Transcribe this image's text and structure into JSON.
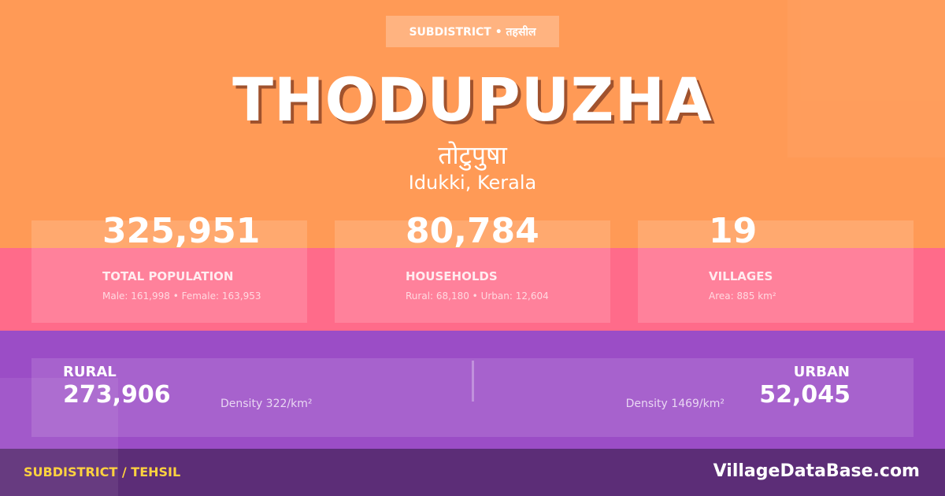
{
  "badge": "SUBDISTRICT • तहसील",
  "title": "THODUPUZHA",
  "title_hindi": "तोटुपुषा",
  "location": "Idukki, Kerala",
  "stats": [
    {
      "value": "325,951",
      "label": "TOTAL POPULATION",
      "sub": "Male: 161,998 • Female: 163,953"
    },
    {
      "value": "80,784",
      "label": "HOUSEHOLDS",
      "sub": "Rural: 68,180 • Urban: 12,604"
    },
    {
      "value": "19",
      "label": "VILLAGES",
      "sub": "Area: 885 km²"
    }
  ],
  "rural": {
    "label": "RURAL",
    "value": "273,906",
    "density": "Density 322/km²"
  },
  "urban": {
    "label": "URBAN",
    "value": "52,045",
    "density": "Density 1469/km²"
  },
  "footer": {
    "type": "SUBDISTRICT / TEHSIL",
    "brand": "VillageDataBase.com"
  },
  "colors": {
    "orange": "#ff9a56",
    "pink": "#ff6b8a",
    "purple": "#9b4dc6",
    "dark_purple": "#5c2d77",
    "accent_yellow": "#ffd23f"
  }
}
